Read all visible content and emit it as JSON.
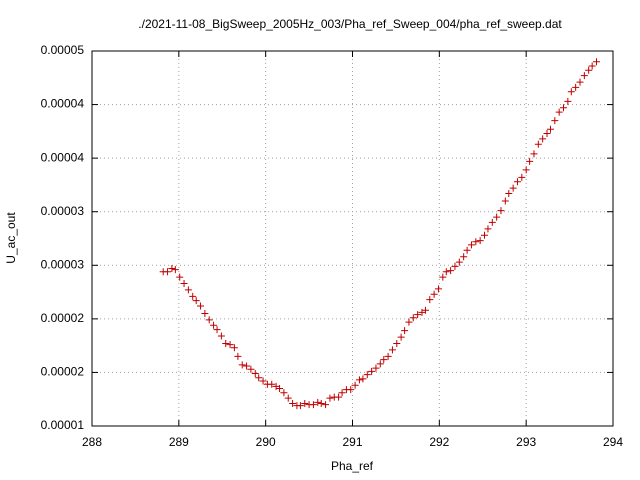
{
  "chart_data": {
    "type": "scatter",
    "title": "./2021-11-08_BigSweep_2005Hz_003/Pha_ref_Sweep_004/pha_ref_sweep.dat",
    "x_label": "Pha_ref",
    "y_label": "U_ac_out",
    "color": "#c00000",
    "grid": true,
    "xlim": [
      288,
      294
    ],
    "xticks": [
      288,
      289,
      290,
      291,
      292,
      293,
      294
    ],
    "ylim": [
      1e-05,
      4.5e-05
    ],
    "yticks": [
      {
        "value": 1e-05,
        "label": "0.00001"
      },
      {
        "value": 1.5e-05,
        "label": "0.00002"
      },
      {
        "value": 2e-05,
        "label": "0.00002"
      },
      {
        "value": 2.5e-05,
        "label": "0.00003"
      },
      {
        "value": 3e-05,
        "label": "0.00003"
      },
      {
        "value": 3.5e-05,
        "label": "0.00004"
      },
      {
        "value": 4e-05,
        "label": "0.00004"
      },
      {
        "value": 4.5e-05,
        "label": "0.00005"
      }
    ],
    "x": [
      288.82,
      288.87,
      288.92,
      288.96,
      289.01,
      289.06,
      289.11,
      289.16,
      289.2,
      289.25,
      289.3,
      289.35,
      289.4,
      289.44,
      289.49,
      289.54,
      289.59,
      289.64,
      289.68,
      289.73,
      289.78,
      289.83,
      289.88,
      289.92,
      289.97,
      290.02,
      290.07,
      290.12,
      290.16,
      290.21,
      290.26,
      290.31,
      290.36,
      290.4,
      290.45,
      290.5,
      290.55,
      290.6,
      290.64,
      290.69,
      290.74,
      290.79,
      290.84,
      290.88,
      290.93,
      290.98,
      291.03,
      291.08,
      291.12,
      291.17,
      291.22,
      291.27,
      291.32,
      291.36,
      291.41,
      291.46,
      291.51,
      291.56,
      291.6,
      291.65,
      291.7,
      291.75,
      291.8,
      291.84,
      291.89,
      291.94,
      291.99,
      292.04,
      292.08,
      292.13,
      292.18,
      292.23,
      292.28,
      292.32,
      292.37,
      292.42,
      292.47,
      292.52,
      292.56,
      292.61,
      292.66,
      292.71,
      292.76,
      292.8,
      292.85,
      292.9,
      292.95,
      293.0,
      293.04,
      293.09,
      293.14,
      293.19,
      293.24,
      293.28,
      293.33,
      293.38,
      293.43,
      293.48,
      293.52,
      293.57,
      293.62,
      293.67,
      293.72,
      293.76,
      293.81
    ],
    "values": [
      2.44e-05,
      2.44e-05,
      2.47e-05,
      2.46e-05,
      2.39e-05,
      2.33e-05,
      2.27e-05,
      2.21e-05,
      2.17e-05,
      2.12e-05,
      2.05e-05,
      1.99e-05,
      1.94e-05,
      1.9e-05,
      1.84e-05,
      1.77e-05,
      1.76e-05,
      1.73e-05,
      1.65e-05,
      1.57e-05,
      1.56e-05,
      1.53e-05,
      1.49e-05,
      1.45e-05,
      1.42e-05,
      1.39e-05,
      1.39e-05,
      1.37e-05,
      1.35e-05,
      1.31e-05,
      1.26e-05,
      1.21e-05,
      1.19e-05,
      1.19e-05,
      1.21e-05,
      1.2e-05,
      1.2e-05,
      1.22e-05,
      1.21e-05,
      1.2e-05,
      1.26e-05,
      1.27e-05,
      1.27e-05,
      1.31e-05,
      1.34e-05,
      1.34e-05,
      1.38e-05,
      1.43e-05,
      1.44e-05,
      1.48e-05,
      1.51e-05,
      1.54e-05,
      1.58e-05,
      1.62e-05,
      1.65e-05,
      1.71e-05,
      1.77e-05,
      1.83e-05,
      1.89e-05,
      1.97e-05,
      2.01e-05,
      2.04e-05,
      2.06e-05,
      2.08e-05,
      2.18e-05,
      2.23e-05,
      2.28e-05,
      2.39e-05,
      2.44e-05,
      2.45e-05,
      2.49e-05,
      2.53e-05,
      2.58e-05,
      2.64e-05,
      2.69e-05,
      2.72e-05,
      2.73e-05,
      2.78e-05,
      2.84e-05,
      2.9e-05,
      2.95e-05,
      3.01e-05,
      3.1e-05,
      3.17e-05,
      3.22e-05,
      3.28e-05,
      3.32e-05,
      3.39e-05,
      3.47e-05,
      3.54e-05,
      3.63e-05,
      3.68e-05,
      3.73e-05,
      3.77e-05,
      3.85e-05,
      3.93e-05,
      3.97e-05,
      4.03e-05,
      4.12e-05,
      4.16e-05,
      4.21e-05,
      4.27e-05,
      4.32e-05,
      4.36e-05,
      4.4e-05
    ]
  }
}
